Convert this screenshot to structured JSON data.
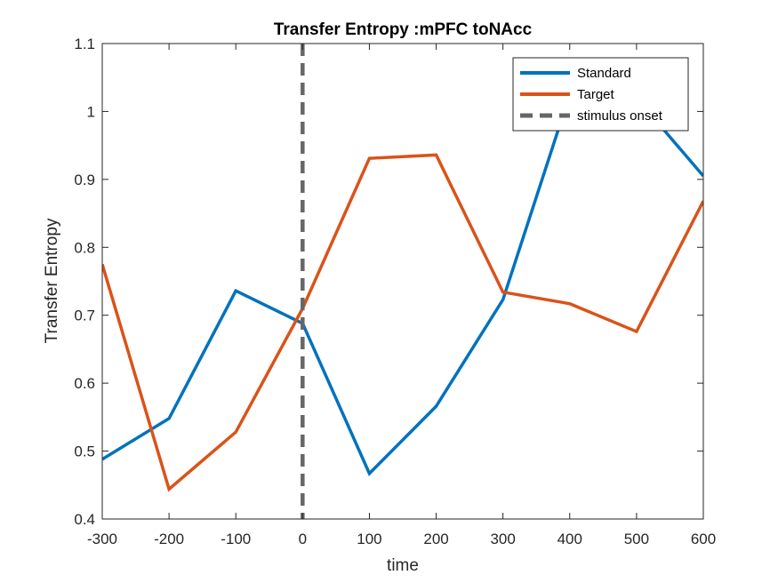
{
  "chart_data": {
    "type": "line",
    "title": "Transfer Entropy :mPFC toNAcc",
    "xlabel": "time",
    "ylabel": "Transfer Entropy",
    "xlim": [
      -300,
      600
    ],
    "ylim": [
      0.4,
      1.1
    ],
    "xticks": [
      -300,
      -200,
      -100,
      0,
      100,
      200,
      300,
      400,
      500,
      600
    ],
    "yticks": [
      0.4,
      0.5,
      0.6,
      0.7,
      0.8,
      0.9,
      1,
      1.1
    ],
    "x": [
      -300,
      -200,
      -100,
      0,
      100,
      200,
      300,
      400,
      500,
      600
    ],
    "series": [
      {
        "name": "Standard",
        "color": "#0072BD",
        "values": [
          0.488,
          0.548,
          0.736,
          0.688,
          0.467,
          0.566,
          0.723,
          1.025,
          1.02,
          0.905
        ]
      },
      {
        "name": "Target",
        "color": "#D95319",
        "values": [
          0.775,
          0.444,
          0.528,
          0.71,
          0.931,
          0.936,
          0.734,
          0.717,
          0.676,
          0.868
        ]
      }
    ],
    "reference_line": {
      "name": "stimulus onset",
      "x": 0,
      "color": "#666666",
      "style": "dashed"
    },
    "grid": false,
    "legend_position": "top-right"
  }
}
